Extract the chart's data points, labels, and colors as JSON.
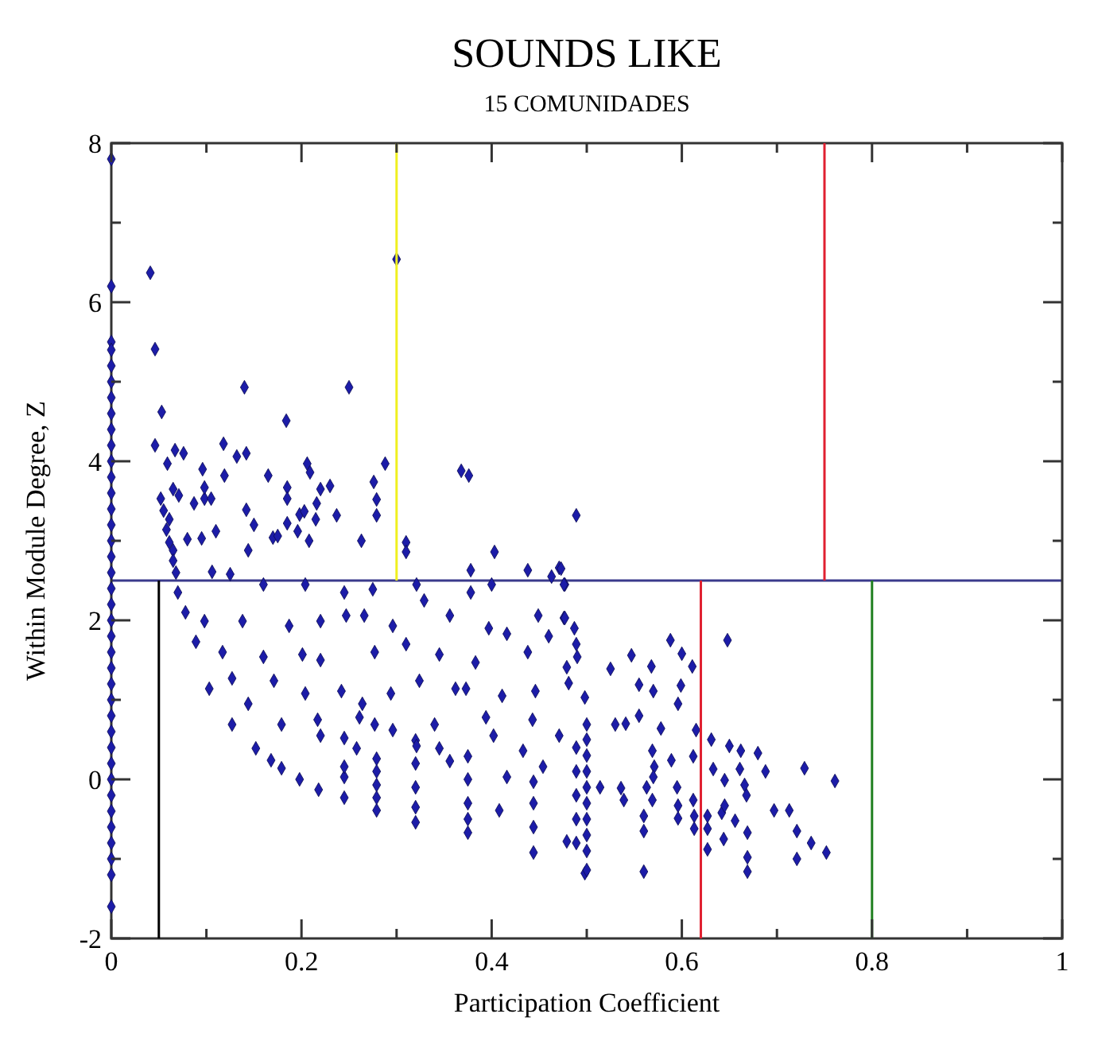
{
  "chart_data": {
    "type": "scatter",
    "title": "SOUNDS LIKE",
    "subtitle": "15 COMUNIDADES",
    "xlabel": "Participation Coefficient",
    "ylabel": "Within Module Degree, Z",
    "xlim": [
      0,
      1
    ],
    "ylim": [
      -2,
      8
    ],
    "xticks": [
      0,
      {
        "value": 0.1,
        "label": null
      },
      0.2,
      {
        "value": 0.3,
        "label": null
      },
      0.4,
      {
        "value": 0.5,
        "label": null
      },
      0.6,
      {
        "value": 0.7,
        "label": null
      },
      0.8,
      {
        "value": 0.9,
        "label": null
      },
      1
    ],
    "yticks": [
      -2,
      {
        "value": -1,
        "label": null
      },
      0,
      {
        "value": 1,
        "label": null
      },
      2,
      {
        "value": 3,
        "label": null
      },
      4,
      {
        "value": 5,
        "label": null
      },
      6,
      {
        "value": 7,
        "label": null
      },
      8
    ],
    "grid": false,
    "ref_lines": [
      {
        "axis": "y",
        "value": 2.5,
        "color": "#3a3a8c"
      }
    ],
    "series": [
      {
        "marker": "diamond",
        "color": "#1c1ca8",
        "x": [
          0,
          0,
          0,
          0,
          0,
          0,
          0,
          0,
          0,
          0,
          0,
          0,
          0,
          0,
          0,
          0,
          0,
          0,
          0,
          0,
          0,
          0,
          0,
          0,
          0,
          0,
          0,
          0,
          0,
          0,
          0,
          0,
          0,
          0,
          0,
          0,
          0,
          0,
          0.041,
          0.046,
          0.053,
          0.046,
          0.14,
          0.25,
          0.184,
          0.3,
          0.288,
          0.368,
          0.376,
          0.489,
          0.118,
          0.067,
          0.076,
          0.059,
          0.132,
          0.142,
          0.096,
          0.119,
          0.165,
          0.206,
          0.209,
          0.185,
          0.22,
          0.23,
          0.276,
          0.279,
          0.279,
          0.237,
          0.052,
          0.055,
          0.065,
          0.071,
          0.087,
          0.098,
          0.105,
          0.098,
          0.061,
          0.142,
          0.15,
          0.185,
          0.198,
          0.203,
          0.185,
          0.216,
          0.215,
          0.058,
          0.061,
          0.08,
          0.095,
          0.11,
          0.144,
          0.17,
          0.175,
          0.196,
          0.208,
          0.263,
          0.31,
          0.31,
          0.403,
          0.378,
          0.438,
          0.463,
          0.471,
          0.477,
          0.065,
          0.065,
          0.068,
          0.07,
          0.078,
          0.089,
          0.103,
          0.127,
          0.152,
          0.168,
          0.179,
          0.198,
          0.218,
          0.245,
          0.279,
          0.32,
          0.375,
          0.408,
          0.444,
          0.479,
          0.498,
          0.279,
          0.279,
          0.279,
          0.279,
          0.32,
          0.32,
          0.32,
          0.32,
          0.375,
          0.375,
          0.375,
          0.375,
          0.444,
          0.444,
          0.444,
          0.5,
          0.5,
          0.5,
          0.5,
          0.5,
          0.5,
          0.5,
          0.5,
          0.5,
          0.5,
          0.489,
          0.489,
          0.489,
          0.489,
          0.489,
          0.473,
          0.476,
          0.487,
          0.489,
          0.49,
          0.479,
          0.498,
          0.588,
          0.648,
          0.6,
          0.611,
          0.547,
          0.568,
          0.525,
          0.599,
          0.555,
          0.57,
          0.596,
          0.555,
          0.53,
          0.541,
          0.578,
          0.615,
          0.631,
          0.65,
          0.662,
          0.68,
          0.729,
          0.761,
          0.688,
          0.661,
          0.666,
          0.645,
          0.633,
          0.569,
          0.571,
          0.57,
          0.589,
          0.612,
          0.514,
          0.536,
          0.539,
          0.563,
          0.569,
          0.56,
          0.56,
          0.595,
          0.596,
          0.596,
          0.612,
          0.613,
          0.613,
          0.627,
          0.627,
          0.627,
          0.642,
          0.644,
          0.645,
          0.656,
          0.669,
          0.669,
          0.669,
          0.668,
          0.697,
          0.713,
          0.721,
          0.736,
          0.752,
          0.721,
          0.56,
          0.106,
          0.125,
          0.16,
          0.204,
          0.245,
          0.275,
          0.321,
          0.378,
          0.4,
          0.476,
          0.098,
          0.138,
          0.187,
          0.22,
          0.247,
          0.266,
          0.296,
          0.329,
          0.356,
          0.397,
          0.416,
          0.449,
          0.477,
          0.117,
          0.16,
          0.201,
          0.22,
          0.277,
          0.31,
          0.345,
          0.383,
          0.438,
          0.46,
          0.127,
          0.171,
          0.204,
          0.242,
          0.264,
          0.294,
          0.324,
          0.362,
          0.373,
          0.411,
          0.446,
          0.481,
          0.144,
          0.179,
          0.217,
          0.261,
          0.277,
          0.296,
          0.34,
          0.394,
          0.402,
          0.443,
          0.471,
          0.22,
          0.245,
          0.258,
          0.321,
          0.345,
          0.356,
          0.433,
          0.416,
          0.454,
          0.245,
          0.245
        ],
        "values": [
          7.8,
          6.2,
          5.5,
          5.4,
          5.2,
          5.0,
          4.8,
          4.6,
          4.4,
          4.2,
          4.0,
          3.8,
          3.6,
          3.4,
          3.2,
          3.0,
          2.8,
          2.6,
          2.4,
          2.2,
          2.0,
          1.8,
          1.6,
          1.4,
          1.2,
          1.0,
          0.8,
          0.6,
          0.4,
          0.2,
          0,
          -0.2,
          -0.4,
          -0.6,
          -0.8,
          -1.0,
          -1.2,
          -1.6,
          6.37,
          5.41,
          4.62,
          4.2,
          4.93,
          4.93,
          4.51,
          6.54,
          3.97,
          3.88,
          3.82,
          3.32,
          4.22,
          4.14,
          4.1,
          3.97,
          4.06,
          4.1,
          3.9,
          3.82,
          3.82,
          3.97,
          3.86,
          3.67,
          3.65,
          3.69,
          3.74,
          3.52,
          3.32,
          3.32,
          3.53,
          3.38,
          3.65,
          3.57,
          3.47,
          3.53,
          3.53,
          3.67,
          3.27,
          3.39,
          3.2,
          3.53,
          3.33,
          3.37,
          3.22,
          3.47,
          3.27,
          3.14,
          2.98,
          3.02,
          3.03,
          3.12,
          2.88,
          3.04,
          3.06,
          3.12,
          3.0,
          3.0,
          2.98,
          2.86,
          2.86,
          2.63,
          2.63,
          2.55,
          2.66,
          2.45,
          2.88,
          2.75,
          2.6,
          2.35,
          2.1,
          1.73,
          1.14,
          0.69,
          0.39,
          0.24,
          0.14,
          0,
          -0.13,
          -0.23,
          -0.39,
          -0.54,
          -0.67,
          -0.39,
          -0.92,
          -0.78,
          -1.18,
          0.26,
          0.1,
          -0.07,
          -0.23,
          0.49,
          0.2,
          -0.1,
          -0.35,
          0.29,
          0,
          -0.3,
          -0.5,
          -0.03,
          -0.3,
          -0.6,
          0.69,
          0.5,
          0.3,
          0.1,
          -0.1,
          -0.3,
          -0.5,
          -0.7,
          -0.9,
          -1.14,
          0.4,
          0.1,
          -0.2,
          -0.5,
          -0.8,
          2.65,
          2.03,
          1.9,
          1.7,
          1.54,
          1.41,
          1.03,
          1.75,
          1.75,
          1.58,
          1.42,
          1.56,
          1.42,
          1.39,
          1.18,
          1.19,
          1.11,
          0.95,
          0.8,
          0.69,
          0.7,
          0.64,
          0.62,
          0.5,
          0.42,
          0.36,
          0.33,
          0.14,
          -0.02,
          0.1,
          0.13,
          -0.07,
          -0.01,
          0.13,
          0.36,
          0.16,
          0.03,
          0.24,
          0.29,
          -0.1,
          -0.11,
          -0.26,
          -0.1,
          -0.26,
          -0.46,
          -0.65,
          -0.1,
          -0.33,
          -0.49,
          -0.26,
          -0.46,
          -0.62,
          -0.46,
          -0.62,
          -0.88,
          -0.42,
          -0.75,
          -0.33,
          -0.52,
          -0.67,
          -0.98,
          -1.16,
          -0.2,
          -0.39,
          -0.39,
          -0.65,
          -0.8,
          -0.92,
          -1.0,
          -1.16,
          2.61,
          2.58,
          2.45,
          2.45,
          2.35,
          2.39,
          2.45,
          2.35,
          2.45,
          2.45,
          1.99,
          1.99,
          1.93,
          1.99,
          2.06,
          2.06,
          1.93,
          2.25,
          2.06,
          1.9,
          1.83,
          2.06,
          2.03,
          1.6,
          1.54,
          1.57,
          1.5,
          1.6,
          1.7,
          1.57,
          1.47,
          1.6,
          1.8,
          1.27,
          1.24,
          1.08,
          1.11,
          0.95,
          1.08,
          1.24,
          1.14,
          1.14,
          1.05,
          1.11,
          1.21,
          0.95,
          0.69,
          0.75,
          0.78,
          0.69,
          0.62,
          0.69,
          0.78,
          0.55,
          0.75,
          0.55,
          0.55,
          0.52,
          0.39,
          0.42,
          0.39,
          0.23,
          0.36,
          0.03,
          0.16,
          0.03,
          0.16
        ]
      },
      {
        "type": "line",
        "marker": "none",
        "color": "#f0f020",
        "x": [
          0.3,
          0.3
        ],
        "values": [
          2.5,
          8
        ]
      },
      {
        "type": "line",
        "marker": "none",
        "color": "#e02030",
        "x": [
          0.75,
          0.75
        ],
        "values": [
          2.5,
          8
        ]
      },
      {
        "type": "line",
        "marker": "none",
        "color": "#000000",
        "x": [
          0.05,
          0.05
        ],
        "values": [
          -2,
          2.5
        ]
      },
      {
        "type": "line",
        "marker": "none",
        "color": "#e02030",
        "x": [
          0.62,
          0.62
        ],
        "values": [
          -2,
          2.5
        ]
      },
      {
        "type": "line",
        "marker": "none",
        "color": "#208020",
        "x": [
          0.8,
          0.8
        ],
        "values": [
          -2,
          2.5
        ]
      }
    ]
  }
}
